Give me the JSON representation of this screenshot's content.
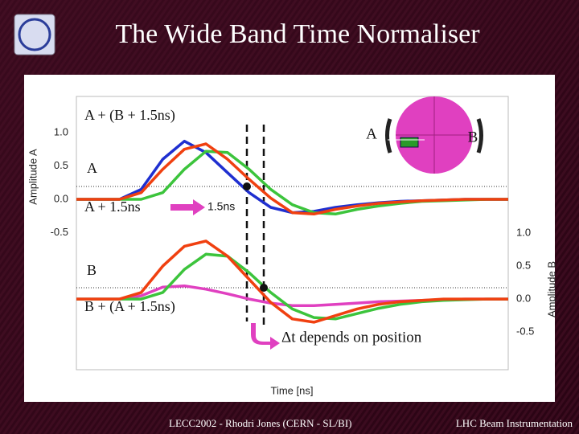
{
  "slide": {
    "title": "The Wide Band Time Normaliser",
    "footer_left": "LECC2002  -  Rhodri Jones (CERN - SL/BI)",
    "footer_right": "LHC Beam Instrumentation"
  },
  "chart_data": {
    "type": "line",
    "xlabel": "Time [ns]",
    "ylabel": "Amplitude A",
    "y2label": "Amplitude B",
    "annotations": [
      "A + (B + 1.5ns)",
      "A",
      "A + 1.5ns",
      "1.5ns",
      "B",
      "B + (A + 1.5ns)",
      "Δt depends on position"
    ],
    "pickup_labels": [
      "A",
      "B"
    ],
    "xlim": [
      0,
      20
    ],
    "x": [
      0,
      1,
      2,
      3,
      4,
      5,
      6,
      7,
      8,
      9,
      10,
      11,
      12,
      13,
      14,
      15,
      16,
      17,
      18,
      19,
      20
    ],
    "ylim": [
      -2.55,
      1.54
    ],
    "yticks": [
      -0.5,
      {
        "value": 0,
        "label": "0.0"
      },
      0.5,
      {
        "value": 1,
        "label": "1.0"
      }
    ],
    "y2lim": [
      -1.07,
      3.07
    ],
    "y2ticks": [
      -0.5,
      {
        "value": 0,
        "label": "0.0"
      },
      0.5,
      {
        "value": 1,
        "label": "1.0"
      }
    ],
    "series": [
      {
        "color": "#1f2fd0",
        "values": [
          0,
          0,
          0,
          0.15,
          0.6,
          0.87,
          0.7,
          0.4,
          0.1,
          -0.12,
          -0.2,
          -0.18,
          -0.12,
          -0.08,
          -0.05,
          -0.03,
          -0.02,
          -0.01,
          0,
          0,
          0
        ]
      },
      {
        "color": "#3cc43c",
        "values": [
          0,
          0,
          0,
          0,
          0.1,
          0.45,
          0.72,
          0.7,
          0.45,
          0.15,
          -0.08,
          -0.2,
          -0.22,
          -0.15,
          -0.1,
          -0.06,
          -0.03,
          -0.02,
          -0.01,
          0,
          0
        ]
      },
      {
        "color": "#f04010",
        "values": [
          0,
          0,
          0,
          0.1,
          0.45,
          0.75,
          0.83,
          0.6,
          0.3,
          0.02,
          -0.2,
          -0.22,
          -0.15,
          -0.1,
          -0.06,
          -0.04,
          -0.02,
          -0.01,
          0,
          0,
          0
        ]
      },
      {
        "color": "#e040c0",
        "axis": "y2",
        "values": [
          0,
          0,
          0,
          0.05,
          0.18,
          0.2,
          0.15,
          0.08,
          0,
          -0.06,
          -0.1,
          -0.1,
          -0.08,
          -0.06,
          -0.04,
          -0.03,
          -0.02,
          -0.01,
          0,
          0,
          0
        ]
      },
      {
        "color": "#3cc43c",
        "axis": "y2",
        "values": [
          0,
          0,
          0,
          0,
          0.1,
          0.45,
          0.68,
          0.65,
          0.4,
          0.1,
          -0.15,
          -0.28,
          -0.3,
          -0.22,
          -0.14,
          -0.08,
          -0.04,
          -0.02,
          -0.01,
          0,
          0
        ]
      },
      {
        "color": "#f04010",
        "axis": "y2",
        "values": [
          0,
          0,
          0,
          0.1,
          0.5,
          0.8,
          0.88,
          0.65,
          0.3,
          -0.05,
          -0.3,
          -0.35,
          -0.25,
          -0.15,
          -0.08,
          -0.04,
          -0.02,
          0,
          0,
          0,
          0
        ]
      }
    ]
  }
}
